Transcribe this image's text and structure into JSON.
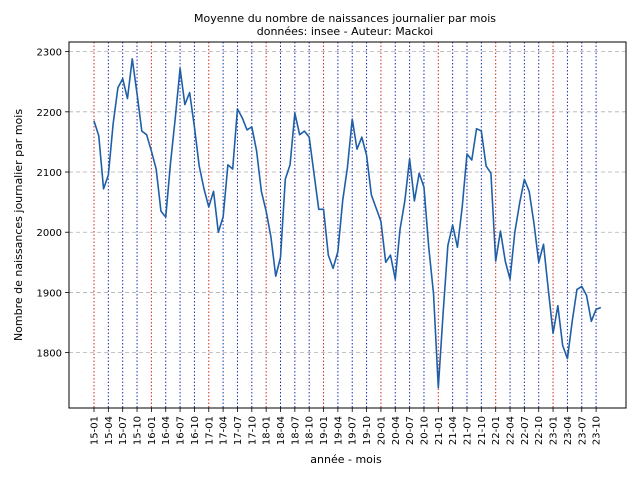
{
  "chart_data": {
    "type": "line",
    "title": "Moyenne du nombre de naissances journalier par mois",
    "subtitle": "données: insee - Auteur: Mackoi",
    "xlabel": "année - mois",
    "ylabel": "Nombre de naissances journalier par mois",
    "ylim": [
      1708,
      2316
    ],
    "y_ticks": [
      1800,
      1900,
      2000,
      2100,
      2200,
      2300
    ],
    "grid": "horizontal dashed",
    "colors": {
      "line": "#1f5fa8",
      "year_marker": "#d62728",
      "quarter_marker": "#1f2fb4",
      "grid": "#b0b0b0"
    },
    "x_tick_labels": [
      "15-01",
      "15-04",
      "15-07",
      "15-10",
      "16-01",
      "16-04",
      "16-07",
      "16-10",
      "17-01",
      "17-04",
      "17-07",
      "17-10",
      "18-01",
      "18-04",
      "18-07",
      "18-10",
      "19-01",
      "19-04",
      "19-07",
      "19-10",
      "20-01",
      "20-04",
      "20-07",
      "20-10",
      "21-01",
      "21-04",
      "21-07",
      "21-10",
      "22-01",
      "22-04",
      "22-07",
      "22-10",
      "23-01",
      "23-04",
      "23-07",
      "23-10"
    ],
    "values": [
      2185,
      2160,
      2072,
      2095,
      2180,
      2240,
      2255,
      2222,
      2288,
      2230,
      2168,
      2162,
      2135,
      2105,
      2035,
      2025,
      2115,
      2190,
      2272,
      2212,
      2232,
      2175,
      2110,
      2072,
      2042,
      2068,
      2000,
      2025,
      2112,
      2105,
      2205,
      2190,
      2170,
      2175,
      2135,
      2068,
      2035,
      1992,
      1927,
      1958,
      2088,
      2112,
      2198,
      2162,
      2168,
      2158,
      2098,
      2038,
      2038,
      1962,
      1940,
      1968,
      2052,
      2108,
      2188,
      2138,
      2158,
      2128,
      2062,
      2040,
      2018,
      1950,
      1962,
      1922,
      2005,
      2052,
      2122,
      2052,
      2098,
      2075,
      1975,
      1898,
      1742,
      1865,
      1978,
      2012,
      1975,
      2042,
      2130,
      2120,
      2172,
      2168,
      2110,
      2098,
      1952,
      2002,
      1952,
      1922,
      2000,
      2048,
      2088,
      2068,
      2015,
      1950,
      1980,
      1905,
      1832,
      1878,
      1812,
      1790,
      1852,
      1905,
      1910,
      1895,
      1852,
      1872,
      1875
    ]
  }
}
